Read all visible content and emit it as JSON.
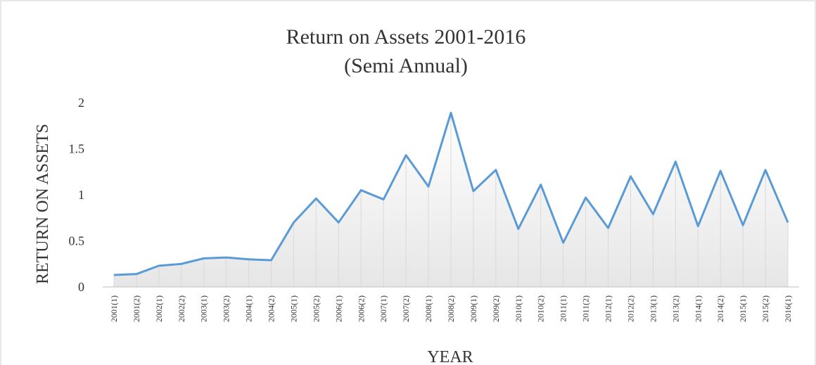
{
  "chart_data": {
    "type": "line",
    "title": [
      "Return on Assets 2001-2016",
      "(Semi Annual)"
    ],
    "x_label": "YEAR",
    "y_label": "RETURN ON ASSETS",
    "categories": [
      "2001(1)",
      "2001(2)",
      "2002(1)",
      "2002(2)",
      "2003(1)",
      "2003(2)",
      "2004(1)",
      "2004(2)",
      "2005(1)",
      "2005(2)",
      "2006(1)",
      "2006(2)",
      "2007(1)",
      "2007(2)",
      "2008(1)",
      "2008(2)",
      "2009(1)",
      "2009(2)",
      "2010(1)",
      "2010(2)",
      "2011(1)",
      "2011(2)",
      "2012(1)",
      "2012(2)",
      "2013(1)",
      "2013(2)",
      "2014(1)",
      "2014(2)",
      "2015(1)",
      "2015(2)",
      "2016(1)"
    ],
    "values": [
      0.13,
      0.14,
      0.23,
      0.25,
      0.31,
      0.32,
      0.3,
      0.29,
      0.7,
      0.96,
      0.7,
      1.05,
      0.95,
      1.43,
      1.09,
      1.89,
      1.04,
      1.27,
      0.63,
      1.11,
      0.48,
      0.97,
      0.64,
      1.2,
      0.79,
      1.36,
      0.66,
      1.26,
      0.67,
      1.27,
      0.7
    ],
    "color": "#5b9bd5",
    "ylim": [
      0,
      2
    ],
    "yticks": [
      0,
      0.5,
      1,
      1.5,
      2
    ]
  }
}
